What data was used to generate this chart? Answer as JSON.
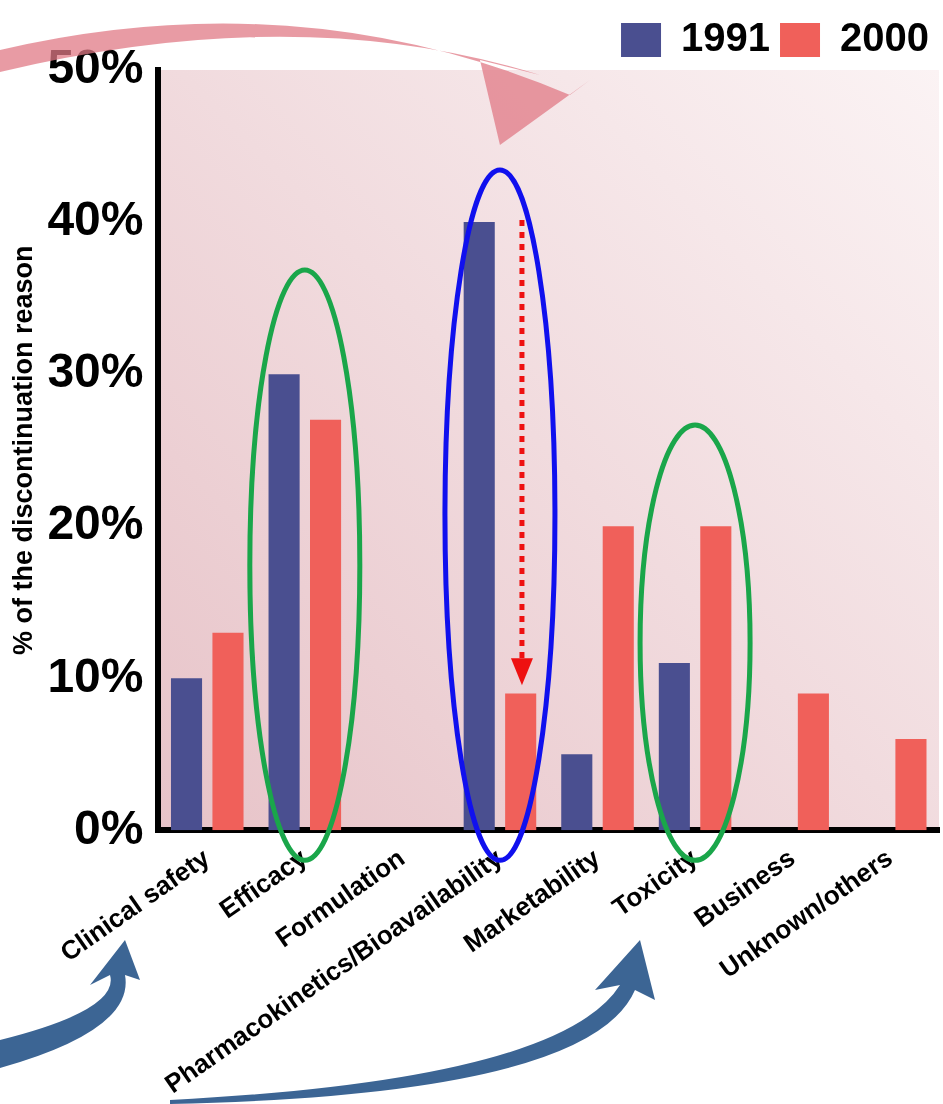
{
  "chart_data": {
    "type": "bar",
    "ylabel": "% of the discontinuation reason",
    "categories": [
      "Clinical safety",
      "Efficacy",
      "Formulation",
      "Pharmacokinetics/Bioavailability",
      "Marketability",
      "Toxicity",
      "Business",
      "Unknown/others"
    ],
    "series": [
      {
        "name": "1991",
        "color": "#4a4f90",
        "values": [
          10,
          30,
          null,
          40,
          5,
          11,
          null,
          null
        ]
      },
      {
        "name": "2000",
        "color": "#f0605a",
        "values": [
          13,
          27,
          null,
          9,
          20,
          20,
          9,
          6
        ]
      }
    ],
    "ylim": [
      0,
      50
    ],
    "yticks": [
      {
        "value": 0,
        "label": "0%"
      },
      {
        "value": 10,
        "label": "10%"
      },
      {
        "value": 20,
        "label": "20%"
      },
      {
        "value": 30,
        "label": "30%"
      },
      {
        "value": 40,
        "label": "40%"
      },
      {
        "value": 50,
        "label": "50%"
      }
    ],
    "grid": false,
    "legend": "top right"
  }
}
